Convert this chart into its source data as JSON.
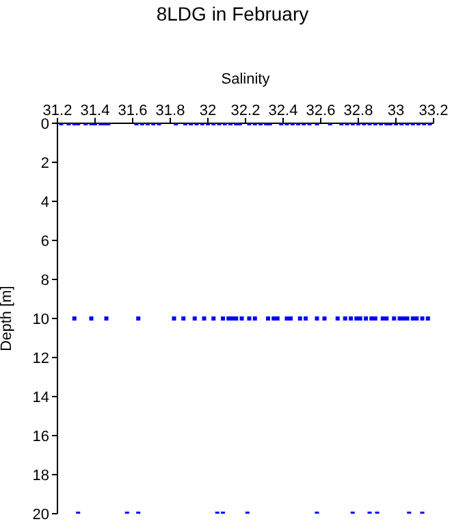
{
  "chart_data": {
    "type": "scatter",
    "title": "8LDG in February",
    "xlabel": "Salinity",
    "ylabel": "Depth [m]",
    "xlim": [
      31.2,
      33.2
    ],
    "xticks": [
      31.2,
      31.4,
      31.6,
      31.8,
      32,
      32.2,
      32.4,
      32.6,
      32.8,
      33,
      33.2
    ],
    "ylim": [
      20,
      0
    ],
    "yticks": [
      0,
      2,
      4,
      6,
      8,
      10,
      12,
      14,
      16,
      18,
      20
    ],
    "grid": false,
    "legend": false,
    "marker": "square",
    "series": [
      {
        "color": "#0000ff",
        "x": [
          31.22,
          31.26,
          31.29,
          31.31,
          31.35,
          31.38,
          31.4,
          31.43,
          31.45,
          31.47,
          31.62,
          31.65,
          31.68,
          31.71,
          31.74,
          31.83,
          31.88,
          31.91,
          31.94,
          31.97,
          32,
          32.03,
          32.06,
          32.09,
          32.12,
          32.15,
          32.17,
          32.22,
          32.25,
          32.28,
          32.31,
          32.33,
          32.39,
          32.42,
          32.45,
          32.48,
          32.51,
          32.54,
          32.58,
          32.65,
          32.71,
          32.74,
          32.77,
          32.8,
          32.83,
          32.86,
          32.89,
          32.92,
          32.95,
          32.97,
          33,
          33.03,
          33.06,
          33.09,
          33.12,
          33.15,
          33.18
        ],
        "values": [
          0,
          0,
          0,
          0,
          0,
          0,
          0,
          0,
          0,
          0,
          0,
          0,
          0,
          0,
          0,
          0,
          0,
          0,
          0,
          0,
          0,
          0,
          0,
          0,
          0,
          0,
          0,
          0,
          0,
          0,
          0,
          0,
          0,
          0,
          0,
          0,
          0,
          0,
          0,
          0,
          0,
          0,
          0,
          0,
          0,
          0,
          0,
          0,
          0,
          0,
          0,
          0,
          0,
          0,
          0,
          0,
          0
        ]
      },
      {
        "color": "#0000ff",
        "x": [
          31.29,
          31.38,
          31.46,
          31.63,
          31.82,
          31.87,
          31.93,
          31.98,
          32.03,
          32.08,
          32.11,
          32.13,
          32.15,
          32.18,
          32.22,
          32.25,
          32.32,
          32.35,
          32.37,
          32.42,
          32.44,
          32.49,
          32.52,
          32.58,
          32.62,
          32.69,
          32.73,
          32.76,
          32.79,
          32.81,
          32.84,
          32.87,
          32.89,
          32.93,
          32.95,
          32.99,
          33.02,
          33.04,
          33.06,
          33.09,
          33.11,
          33.14,
          33.17
        ],
        "values": [
          10,
          10,
          10,
          10,
          10,
          10,
          10,
          10,
          10,
          10,
          10,
          10,
          10,
          10,
          10,
          10,
          10,
          10,
          10,
          10,
          10,
          10,
          10,
          10,
          10,
          10,
          10,
          10,
          10,
          10,
          10,
          10,
          10,
          10,
          10,
          10,
          10,
          10,
          10,
          10,
          10,
          10,
          10
        ]
      },
      {
        "color": "#0000ff",
        "x": [
          31.31,
          31.57,
          31.63,
          32.05,
          32.08,
          32.21,
          32.58,
          32.77,
          32.86,
          32.9,
          33.07,
          33.14
        ],
        "values": [
          20,
          20,
          20,
          20,
          20,
          20,
          20,
          20,
          20,
          20,
          20,
          20
        ]
      }
    ]
  }
}
